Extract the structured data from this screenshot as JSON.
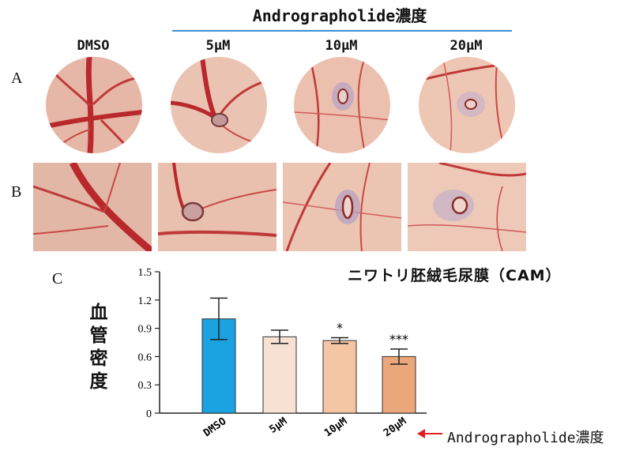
{
  "header": {
    "title": "Andrographolide濃度"
  },
  "panels": {
    "a_label": "A",
    "b_label": "B",
    "c_label": "C",
    "columns": [
      "DMSO",
      "5μM",
      "10μM",
      "20μM"
    ]
  },
  "chart_data": {
    "type": "bar",
    "title": "ニワトリ胚絨毛尿膜（CAM）",
    "ylabel": "血管密度",
    "xlabel": "Andrographolide濃度",
    "categories": [
      "DMSO",
      "5μM",
      "10μM",
      "20μM"
    ],
    "values": [
      1.0,
      0.81,
      0.77,
      0.6
    ],
    "errors": [
      0.22,
      0.07,
      0.03,
      0.08
    ],
    "significance": [
      "",
      "",
      "*",
      "***"
    ],
    "ylim": [
      0,
      1.5
    ],
    "yticks": [
      "0",
      "0.3",
      "0.6",
      "0.9",
      "1.2",
      "1.5"
    ],
    "colors": [
      "#1aa3e0",
      "#f6e1d3",
      "#f4c6a4",
      "#eba67a"
    ],
    "grid": false
  }
}
